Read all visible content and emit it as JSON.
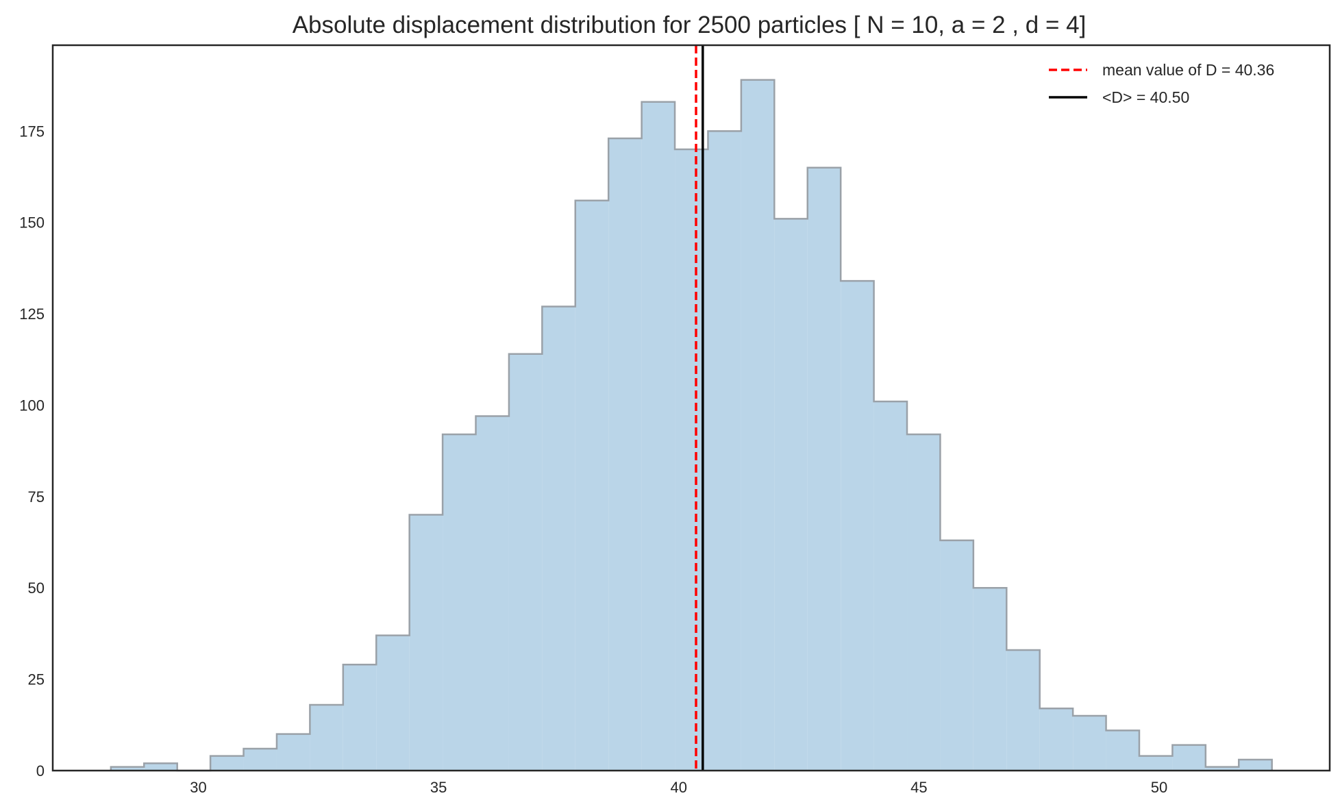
{
  "chart_data": {
    "type": "histogram",
    "title": "Absolute displacement distribution for 2500 particles [ N = 10, a = 2 , d = 4]",
    "xlabel": "",
    "ylabel": "",
    "xlim": [
      26.97,
      53.55
    ],
    "ylim": [
      0,
      198.5
    ],
    "xticks": [
      30,
      35,
      40,
      45,
      50
    ],
    "yticks": [
      0,
      25,
      50,
      75,
      100,
      125,
      150,
      175
    ],
    "grid": false,
    "legend_position": "upper right",
    "bin_start": 28.18,
    "bin_width": 0.6905,
    "counts": [
      1,
      2,
      0,
      4,
      6,
      10,
      18,
      29,
      37,
      70,
      92,
      97,
      114,
      127,
      156,
      173,
      183,
      170,
      175,
      189,
      151,
      165,
      134,
      101,
      92,
      63,
      50,
      33,
      17,
      15,
      11,
      4,
      7,
      1,
      3
    ],
    "fill_color": "#bad5e8",
    "edge_color": "#9aa1a8",
    "lines": [
      {
        "label": "mean value of D = 40.36",
        "x": 40.36,
        "color": "#ff0000",
        "style": "dashed"
      },
      {
        "label": "<D> = 40.50",
        "x": 40.5,
        "color": "#000000",
        "style": "solid"
      }
    ]
  }
}
